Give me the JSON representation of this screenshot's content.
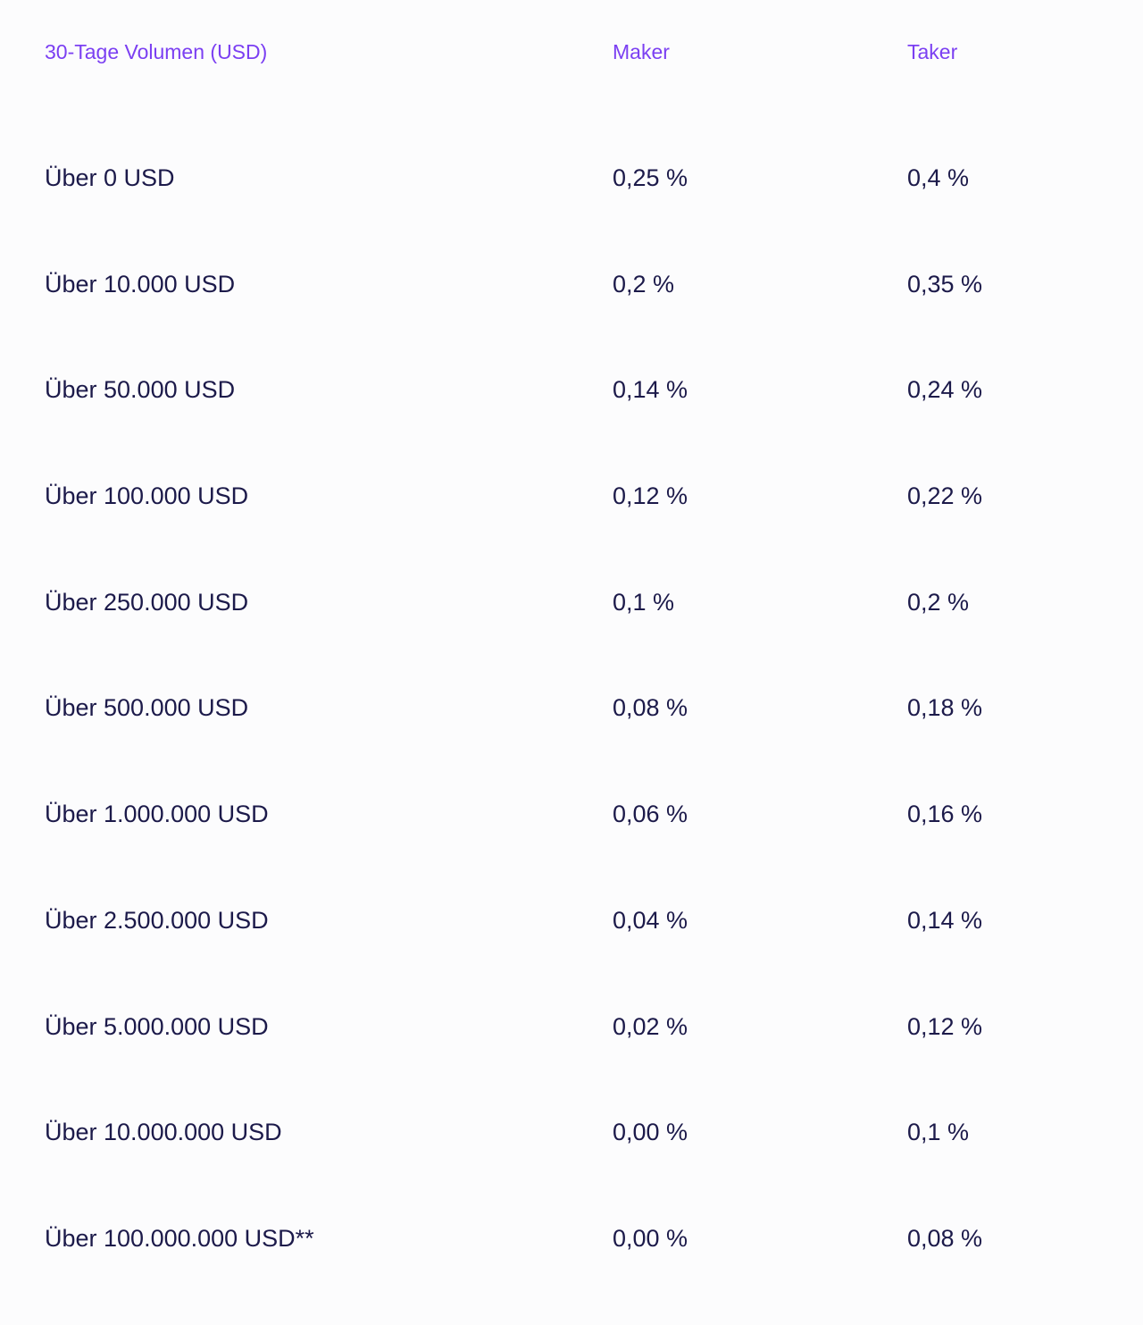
{
  "table": {
    "headers": {
      "volume": "30-Tage Volumen (USD)",
      "maker": "Maker",
      "taker": "Taker"
    },
    "rows": [
      {
        "volume": "Über 0 USD",
        "maker": "0,25 %",
        "taker": "0,4 %"
      },
      {
        "volume": "Über 10.000 USD",
        "maker": "0,2 %",
        "taker": "0,35 %"
      },
      {
        "volume": "Über 50.000 USD",
        "maker": "0,14 %",
        "taker": "0,24 %"
      },
      {
        "volume": "Über 100.000 USD",
        "maker": "0,12 %",
        "taker": "0,22 %"
      },
      {
        "volume": "Über 250.000 USD",
        "maker": "0,1 %",
        "taker": "0,2 %"
      },
      {
        "volume": "Über 500.000 USD",
        "maker": "0,08 %",
        "taker": "0,18 %"
      },
      {
        "volume": "Über 1.000.000 USD",
        "maker": "0,06 %",
        "taker": "0,16 %"
      },
      {
        "volume": "Über 2.500.000 USD",
        "maker": "0,04 %",
        "taker": "0,14 %"
      },
      {
        "volume": "Über 5.000.000 USD",
        "maker": "0,02 %",
        "taker": "0,12 %"
      },
      {
        "volume": "Über 10.000.000 USD",
        "maker": "0,00 %",
        "taker": "0,1 %"
      },
      {
        "volume": "Über 100.000.000 USD**",
        "maker": "0,00 %",
        "taker": "0,08 %"
      }
    ]
  },
  "colors": {
    "header_text": "#7b3ff2",
    "body_text": "#1c1a4a",
    "background": "#fcfcfd"
  }
}
